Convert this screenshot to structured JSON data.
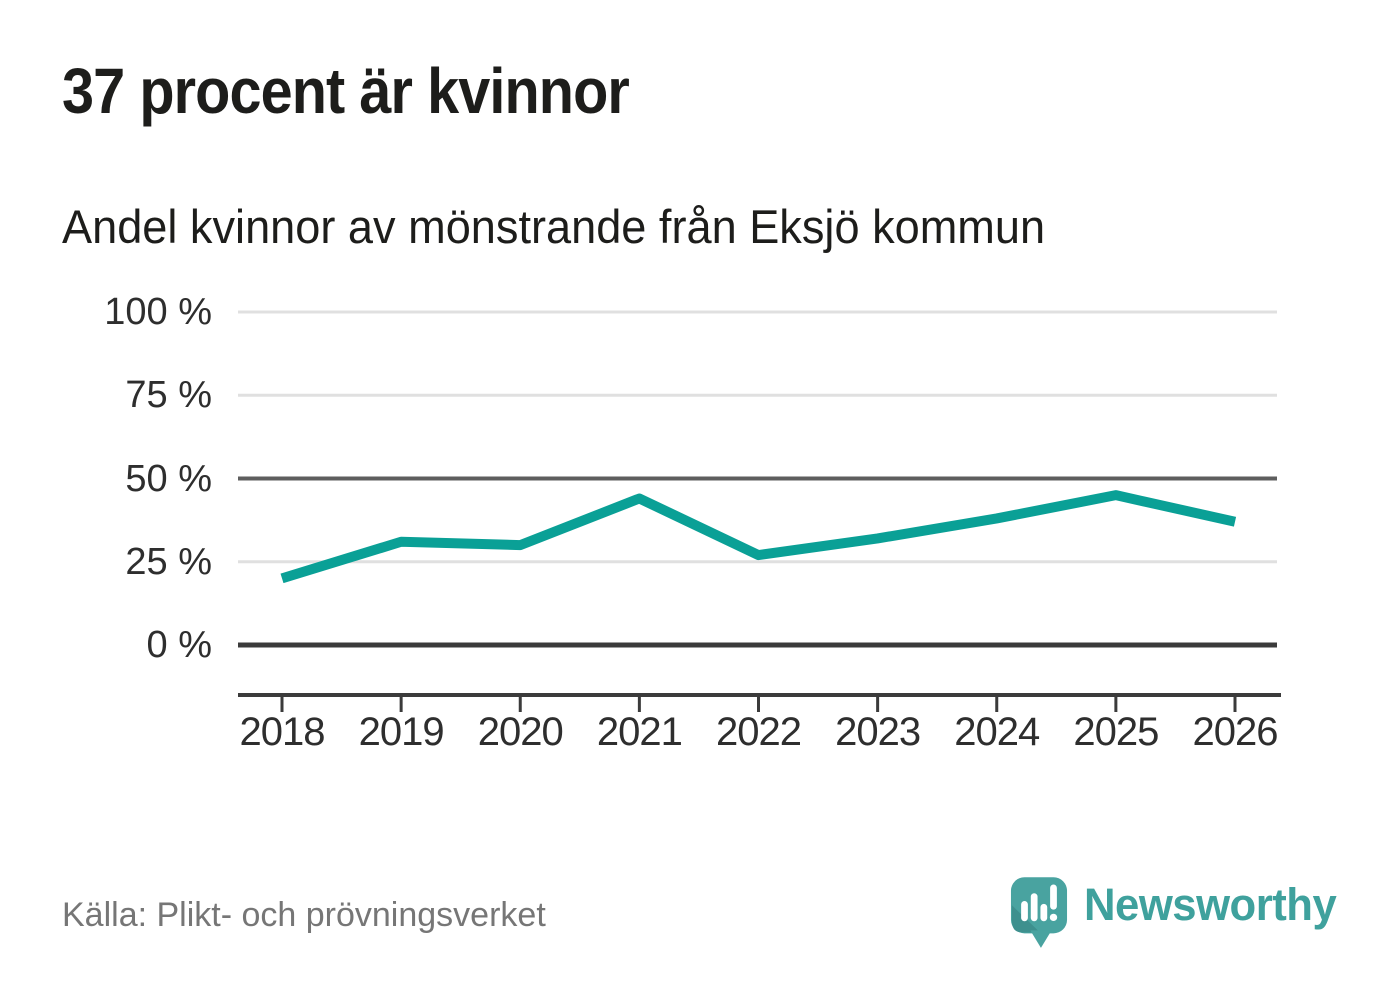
{
  "header": {
    "title": "37 procent är kvinnor",
    "subtitle": "Andel kvinnor av mönstrande från Eksjö kommun"
  },
  "chart_data": {
    "type": "line",
    "title": "37 procent är kvinnor",
    "subtitle": "Andel kvinnor av mönstrande från Eksjö kommun",
    "x": [
      2018,
      2019,
      2020,
      2021,
      2022,
      2023,
      2024,
      2025,
      2026
    ],
    "series": [
      {
        "name": "Andel kvinnor av mönstrande, Eksjö kommun",
        "values": [
          20,
          31,
          30,
          44,
          27,
          32,
          38,
          45,
          37
        ],
        "color": "#0aa096"
      }
    ],
    "unit": "%",
    "ylim": [
      0,
      100
    ],
    "yticks": [
      0,
      25,
      50,
      75,
      100
    ],
    "ytick_labels": [
      "0 %",
      "25 %",
      "50 %",
      "75 %",
      "100 %"
    ],
    "xlabel": "",
    "ylabel": "",
    "grid": "horizontal",
    "emphasized_gridline": 50,
    "zero_line": true,
    "legend_position": "none"
  },
  "footer": {
    "source": "Källa: Plikt- och prövningsverket",
    "brand": "Newsworthy"
  },
  "colors": {
    "line": "#0aa096",
    "grid_light": "#e0e0e0",
    "grid_mid": "#5e5e5e",
    "grid_zero": "#3b3b3b",
    "axis": "#3b3b3b",
    "title_text": "#1d1d1b",
    "tick_text": "#2e2e2e",
    "source_text": "#767676",
    "brand": "#3fa19d"
  }
}
